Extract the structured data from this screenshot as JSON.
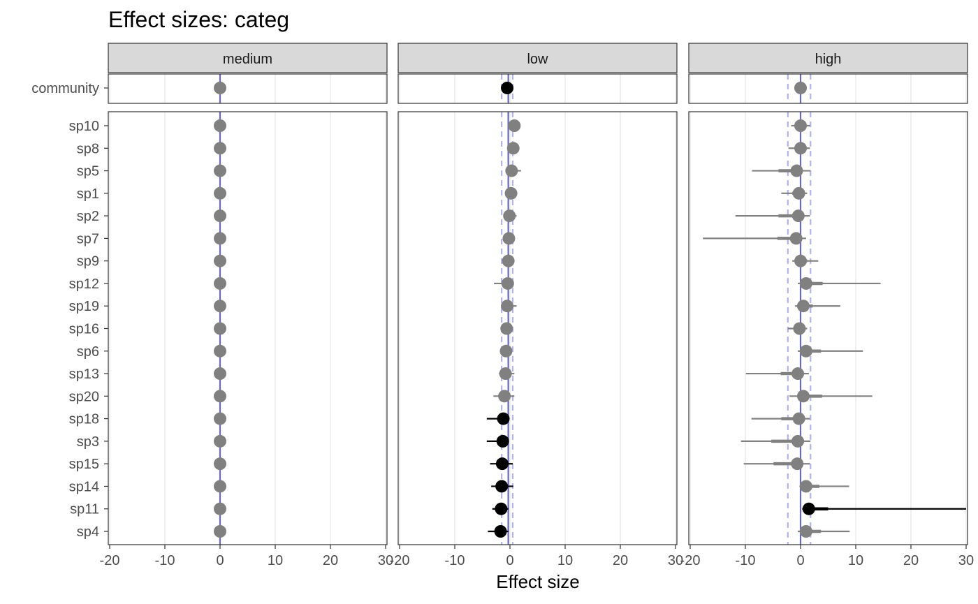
{
  "title": "Effect sizes: categ",
  "chart_data": {
    "type": "scatter",
    "subtype": "forest-plot-faceted",
    "title": "Effect sizes: categ",
    "xlabel": "Effect size",
    "ylabel": "",
    "xlim": [
      -20,
      30
    ],
    "x_ticks": [
      -20,
      -10,
      0,
      10,
      20,
      30
    ],
    "x_tick_labels": [
      "-20",
      "-10",
      "0",
      "10",
      "20",
      "30"
    ],
    "grid": true,
    "community_label": "community",
    "species": [
      "sp10",
      "sp8",
      "sp5",
      "sp1",
      "sp2",
      "sp7",
      "sp9",
      "sp12",
      "sp19",
      "sp16",
      "sp6",
      "sp13",
      "sp20",
      "sp18",
      "sp3",
      "sp15",
      "sp14",
      "sp11",
      "sp4"
    ],
    "colors": {
      "significant": "#000000",
      "nonsignificant": "#808080",
      "reference_line": "#6a6ab8",
      "ci_band": "#b3b3f2",
      "strip_fill": "#d9d9d9",
      "grid": "#ebebeb",
      "frame": "#333333"
    },
    "panels": [
      {
        "name": "medium",
        "community": {
          "x": 0,
          "lo95": 0,
          "hi95": 0,
          "lo50": 0,
          "hi50": 0,
          "sig": false
        },
        "ref_line": 0,
        "band": [
          0,
          0
        ],
        "species": [
          {
            "x": 0,
            "lo95": 0,
            "hi95": 0,
            "lo50": 0,
            "hi50": 0,
            "sig": false
          },
          {
            "x": 0,
            "lo95": 0,
            "hi95": 0,
            "lo50": 0,
            "hi50": 0,
            "sig": false
          },
          {
            "x": 0,
            "lo95": 0,
            "hi95": 0,
            "lo50": 0,
            "hi50": 0,
            "sig": false
          },
          {
            "x": 0,
            "lo95": 0,
            "hi95": 0,
            "lo50": 0,
            "hi50": 0,
            "sig": false
          },
          {
            "x": 0,
            "lo95": 0,
            "hi95": 0,
            "lo50": 0,
            "hi50": 0,
            "sig": false
          },
          {
            "x": 0,
            "lo95": 0,
            "hi95": 0,
            "lo50": 0,
            "hi50": 0,
            "sig": false
          },
          {
            "x": 0,
            "lo95": 0,
            "hi95": 0,
            "lo50": 0,
            "hi50": 0,
            "sig": false
          },
          {
            "x": 0,
            "lo95": 0,
            "hi95": 0,
            "lo50": 0,
            "hi50": 0,
            "sig": false
          },
          {
            "x": 0,
            "lo95": 0,
            "hi95": 0,
            "lo50": 0,
            "hi50": 0,
            "sig": false
          },
          {
            "x": 0,
            "lo95": 0,
            "hi95": 0,
            "lo50": 0,
            "hi50": 0,
            "sig": false
          },
          {
            "x": 0,
            "lo95": 0,
            "hi95": 0,
            "lo50": 0,
            "hi50": 0,
            "sig": false
          },
          {
            "x": 0,
            "lo95": 0,
            "hi95": 0,
            "lo50": 0,
            "hi50": 0,
            "sig": false
          },
          {
            "x": 0,
            "lo95": 0,
            "hi95": 0,
            "lo50": 0,
            "hi50": 0,
            "sig": false
          },
          {
            "x": 0,
            "lo95": 0,
            "hi95": 0,
            "lo50": 0,
            "hi50": 0,
            "sig": false
          },
          {
            "x": 0,
            "lo95": 0,
            "hi95": 0,
            "lo50": 0,
            "hi50": 0,
            "sig": false
          },
          {
            "x": 0,
            "lo95": 0,
            "hi95": 0,
            "lo50": 0,
            "hi50": 0,
            "sig": false
          },
          {
            "x": 0,
            "lo95": 0,
            "hi95": 0,
            "lo50": 0,
            "hi50": 0,
            "sig": false
          },
          {
            "x": 0,
            "lo95": 0,
            "hi95": 0,
            "lo50": 0,
            "hi50": 0,
            "sig": false
          },
          {
            "x": 0,
            "lo95": 0,
            "hi95": 0,
            "lo50": 0,
            "hi50": 0,
            "sig": false
          }
        ]
      },
      {
        "name": "low",
        "community": {
          "x": -0.5,
          "lo95": -0.9,
          "hi95": -0.1,
          "lo50": -0.7,
          "hi50": -0.3,
          "sig": true
        },
        "ref_line": -0.3,
        "band": [
          -1.5,
          0.5
        ],
        "species": [
          {
            "x": 0.8,
            "lo95": -0.2,
            "hi95": 1.8,
            "lo50": 0.3,
            "hi50": 1.3,
            "sig": false
          },
          {
            "x": 0.6,
            "lo95": -0.3,
            "hi95": 1.5,
            "lo50": 0.2,
            "hi50": 1.0,
            "sig": false
          },
          {
            "x": 0.3,
            "lo95": -0.6,
            "hi95": 2.0,
            "lo50": -0.2,
            "hi50": 1.0,
            "sig": false
          },
          {
            "x": 0.2,
            "lo95": -0.5,
            "hi95": 1.2,
            "lo50": -0.1,
            "hi50": 0.7,
            "sig": false
          },
          {
            "x": -0.1,
            "lo95": -0.9,
            "hi95": 1.2,
            "lo50": -0.5,
            "hi50": 0.5,
            "sig": false
          },
          {
            "x": -0.2,
            "lo95": -0.8,
            "hi95": 0.6,
            "lo50": -0.5,
            "hi50": 0.2,
            "sig": false
          },
          {
            "x": -0.3,
            "lo95": -1.0,
            "hi95": 0.5,
            "lo50": -0.6,
            "hi50": 0.1,
            "sig": false
          },
          {
            "x": -0.4,
            "lo95": -2.9,
            "hi95": 0.5,
            "lo50": -1.2,
            "hi50": 0.1,
            "sig": false
          },
          {
            "x": -0.5,
            "lo95": -1.5,
            "hi95": 1.2,
            "lo50": -1.0,
            "hi50": 0.3,
            "sig": false
          },
          {
            "x": -0.6,
            "lo95": -1.3,
            "hi95": 0.3,
            "lo50": -1.0,
            "hi50": -0.2,
            "sig": false
          },
          {
            "x": -0.7,
            "lo95": -1.5,
            "hi95": 0.3,
            "lo50": -1.1,
            "hi50": -0.2,
            "sig": false
          },
          {
            "x": -0.8,
            "lo95": -2.0,
            "hi95": 0.8,
            "lo50": -1.3,
            "hi50": -0.1,
            "sig": false
          },
          {
            "x": -1.0,
            "lo95": -3.0,
            "hi95": 0.8,
            "lo50": -1.8,
            "hi50": -0.2,
            "sig": false
          },
          {
            "x": -1.2,
            "lo95": -4.2,
            "hi95": -0.4,
            "lo50": -2.0,
            "hi50": -0.7,
            "sig": true
          },
          {
            "x": -1.3,
            "lo95": -4.2,
            "hi95": -0.5,
            "lo50": -2.1,
            "hi50": -0.8,
            "sig": true
          },
          {
            "x": -1.4,
            "lo95": -3.6,
            "hi95": 0.5,
            "lo50": -2.2,
            "hi50": -0.7,
            "sig": true
          },
          {
            "x": -1.5,
            "lo95": -3.4,
            "hi95": 0.6,
            "lo50": -2.2,
            "hi50": -0.8,
            "sig": true
          },
          {
            "x": -1.6,
            "lo95": -3.2,
            "hi95": -0.3,
            "lo50": -2.2,
            "hi50": -0.9,
            "sig": true
          },
          {
            "x": -1.7,
            "lo95": -4.0,
            "hi95": -0.3,
            "lo50": -2.5,
            "hi50": -1.0,
            "sig": true
          }
        ]
      },
      {
        "name": "high",
        "community": {
          "x": 0,
          "lo95": -0.8,
          "hi95": 0.8,
          "lo50": -0.4,
          "hi50": 0.4,
          "sig": false
        },
        "ref_line": 0,
        "band": [
          -2.3,
          1.8
        ],
        "species": [
          {
            "x": 0,
            "lo95": -1.7,
            "hi95": 1.7,
            "lo50": -0.8,
            "hi50": 0.8,
            "sig": false
          },
          {
            "x": 0,
            "lo95": -2.2,
            "hi95": 1.7,
            "lo50": -1.0,
            "hi50": 0.8,
            "sig": false
          },
          {
            "x": -0.7,
            "lo95": -8.8,
            "hi95": 1.8,
            "lo50": -4.0,
            "hi50": 0.3,
            "sig": false
          },
          {
            "x": -0.3,
            "lo95": -3.5,
            "hi95": 1.2,
            "lo50": -1.5,
            "hi50": 0.5,
            "sig": false
          },
          {
            "x": -0.4,
            "lo95": -11.8,
            "hi95": 1.7,
            "lo50": -4.0,
            "hi50": 0.6,
            "sig": false
          },
          {
            "x": -0.8,
            "lo95": -17.7,
            "hi95": 1.0,
            "lo50": -4.2,
            "hi50": 0.3,
            "sig": false
          },
          {
            "x": 0,
            "lo95": -1.5,
            "hi95": 3.2,
            "lo50": -0.7,
            "hi50": 1.2,
            "sig": false
          },
          {
            "x": 1.0,
            "lo95": -0.5,
            "hi95": 14.5,
            "lo50": 0.3,
            "hi50": 4.0,
            "sig": false
          },
          {
            "x": 0.5,
            "lo95": -1.0,
            "hi95": 7.2,
            "lo50": -0.2,
            "hi50": 2.2,
            "sig": false
          },
          {
            "x": -0.2,
            "lo95": -2.3,
            "hi95": 1.2,
            "lo50": -1.0,
            "hi50": 0.5,
            "sig": false
          },
          {
            "x": 1.0,
            "lo95": -0.5,
            "hi95": 11.3,
            "lo50": 0.2,
            "hi50": 3.7,
            "sig": false
          },
          {
            "x": -0.5,
            "lo95": -9.9,
            "hi95": 1.5,
            "lo50": -3.6,
            "hi50": 0.5,
            "sig": false
          },
          {
            "x": 0.5,
            "lo95": -2.0,
            "hi95": 13.0,
            "lo50": -0.5,
            "hi50": 3.9,
            "sig": false
          },
          {
            "x": -0.3,
            "lo95": -8.9,
            "hi95": 1.7,
            "lo50": -3.5,
            "hi50": 0.7,
            "sig": false
          },
          {
            "x": -0.5,
            "lo95": -10.8,
            "hi95": 1.8,
            "lo50": -5.3,
            "hi50": 0.6,
            "sig": false
          },
          {
            "x": -0.6,
            "lo95": -10.3,
            "hi95": 1.7,
            "lo50": -4.9,
            "hi50": 0.5,
            "sig": false
          },
          {
            "x": 1.0,
            "lo95": -0.2,
            "hi95": 8.8,
            "lo50": 0.4,
            "hi50": 3.4,
            "sig": false
          },
          {
            "x": 1.5,
            "lo95": 0.3,
            "hi95": 30.0,
            "lo50": 0.8,
            "hi50": 5.0,
            "sig": true
          },
          {
            "x": 1.0,
            "lo95": -0.5,
            "hi95": 8.9,
            "lo50": 0.2,
            "hi50": 3.7,
            "sig": false
          }
        ]
      }
    ]
  }
}
